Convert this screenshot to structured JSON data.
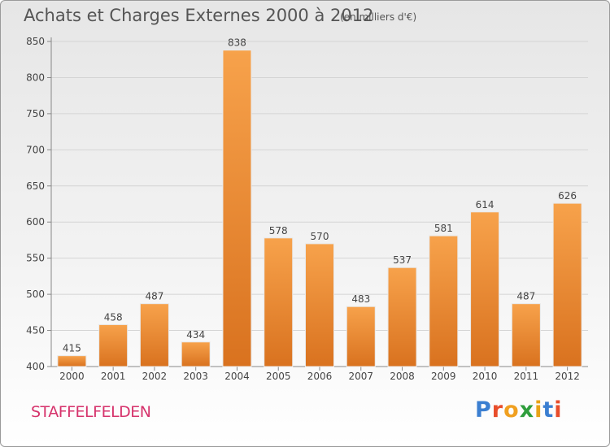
{
  "title": "Achats et Charges Externes 2000 à 2012",
  "subtitle": "(en milliers d'€)",
  "commune": "STAFFELFELDEN",
  "logo": {
    "letters": [
      "P",
      "r",
      "o",
      "x",
      "i",
      "t",
      "i"
    ],
    "colors": [
      "#3b7fd1",
      "#e84d2b",
      "#f0a020",
      "#2f9e3d",
      "#e8a317",
      "#3b7fd1",
      "#e84d2b"
    ]
  },
  "chart_data": {
    "type": "bar",
    "categories": [
      "2000",
      "2001",
      "2002",
      "2003",
      "2004",
      "2005",
      "2006",
      "2007",
      "2008",
      "2009",
      "2010",
      "2011",
      "2012"
    ],
    "values": [
      415,
      458,
      487,
      434,
      838,
      578,
      570,
      483,
      537,
      581,
      614,
      487,
      626
    ],
    "ylim": [
      400,
      850
    ],
    "yticks": [
      400,
      450,
      500,
      550,
      600,
      650,
      700,
      750,
      800,
      850
    ],
    "grid": true,
    "bar_color_light": "#f7a24b",
    "bar_color_dark": "#d9721f"
  }
}
